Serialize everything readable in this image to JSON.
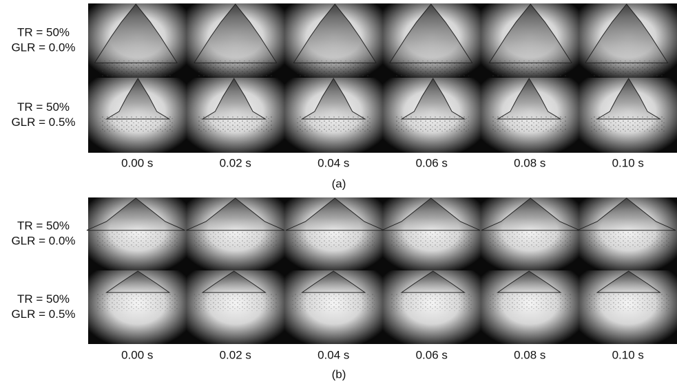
{
  "panels": [
    {
      "caption": "(a)",
      "rows": [
        {
          "lines": [
            "TR = 50%",
            "GLR = 0.0%"
          ]
        },
        {
          "lines": [
            "TR = 50%",
            "GLR = 0.5%"
          ]
        }
      ],
      "times": [
        "0.00 s",
        "0.02 s",
        "0.04 s",
        "0.06 s",
        "0.08 s",
        "0.10 s"
      ]
    },
    {
      "caption": "(b)",
      "rows": [
        {
          "lines": [
            "TR = 50%",
            "GLR = 0.0%"
          ]
        },
        {
          "lines": [
            "TR = 50%",
            "GLR = 0.5%"
          ]
        }
      ],
      "times": [
        "0.00 s",
        "0.02 s",
        "0.04 s",
        "0.06 s",
        "0.08 s",
        "0.10 s"
      ]
    }
  ]
}
